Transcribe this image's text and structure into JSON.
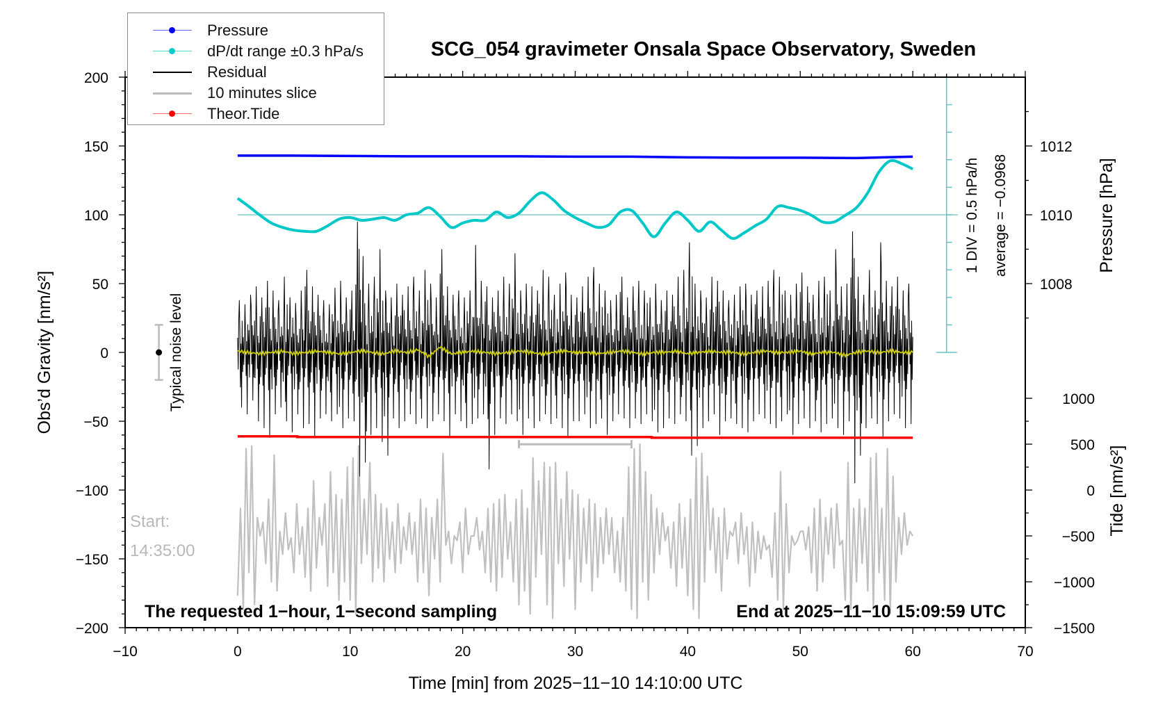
{
  "chart_data": {
    "type": "line",
    "title": "SCG_054 gravimeter Onsala Space Observatory, Sweden",
    "xlabel": "Time [min] from 2025−11−10 14:10:00 UTC",
    "ylabel": "Obs’d Gravity [nm/s²]",
    "y2label_pressure": "Pressure [hPa]",
    "y2label_tide": "Tide [nm/s²]",
    "xlim": [
      -10,
      70
    ],
    "ylim": [
      -200,
      200
    ],
    "x_ticks": [
      {
        "v": -10,
        "label": "−10"
      },
      {
        "v": 0,
        "label": "0"
      },
      {
        "v": 10,
        "label": "10"
      },
      {
        "v": 20,
        "label": "20"
      },
      {
        "v": 30,
        "label": "30"
      },
      {
        "v": 40,
        "label": "40"
      },
      {
        "v": 50,
        "label": "50"
      },
      {
        "v": 60,
        "label": "60"
      },
      {
        "v": 70,
        "label": "70"
      }
    ],
    "y_ticks": [
      {
        "v": 200,
        "label": "200"
      },
      {
        "v": 150,
        "label": "150"
      },
      {
        "v": 100,
        "label": "100"
      },
      {
        "v": 50,
        "label": "50"
      },
      {
        "v": 0,
        "label": "0"
      },
      {
        "v": -50,
        "label": "−50"
      },
      {
        "v": -100,
        "label": "−100"
      },
      {
        "v": -150,
        "label": "−150"
      },
      {
        "v": -200,
        "label": "−200"
      }
    ],
    "pressure_ticks": [
      {
        "v": 1012,
        "label": "1012"
      },
      {
        "v": 1010,
        "label": "1010"
      },
      {
        "v": 1008,
        "label": "1008"
      }
    ],
    "tide_ticks": [
      {
        "v": 1000,
        "label": "1000"
      },
      {
        "v": 500,
        "label": "500"
      },
      {
        "v": 0,
        "label": "0"
      },
      {
        "v": -500,
        "label": "−500"
      },
      {
        "v": -1000,
        "label": "−1000"
      },
      {
        "v": -1500,
        "label": "−1500"
      }
    ],
    "legend": {
      "placement": "top-left",
      "entries": [
        {
          "label": "Pressure",
          "color": "#0000ff",
          "marker": true
        },
        {
          "label": "dP/dt range ±0.3 hPa/s",
          "color": "#00cccc",
          "marker": true
        },
        {
          "label": "Residual",
          "color": "#000000",
          "marker": false
        },
        {
          "label": "10 minutes slice",
          "color": "#bbbbbb",
          "marker": false
        },
        {
          "label": "Theor.Tide",
          "color": "#ff0000",
          "marker": true
        }
      ]
    },
    "dpdt_annotation": {
      "div": "1 DIV = 0.5 hPa/h",
      "average": "average = −0.0968"
    },
    "noise_label": "Typical noise level",
    "noise_level": {
      "x": -7,
      "center": 0,
      "half_range": 20
    },
    "start_label": "Start:",
    "start_time": "14:35:00",
    "bottom_left_note": "The requested 1−hour, 1−second sampling",
    "bottom_right_note": "End at 2025−11−10 15:09:59 UTC",
    "slice_window": [
      25,
      35
    ],
    "series": {
      "pressure": {
        "name": "Pressure",
        "unit": "hPa",
        "x_step": 5,
        "values": [
          1011.72,
          1011.72,
          1011.71,
          1011.7,
          1011.7,
          1011.7,
          1011.69,
          1011.69,
          1011.67,
          1011.66,
          1011.66,
          1011.65,
          1011.69
        ]
      },
      "dpdt": {
        "name": "dP/dt",
        "unit": "hPa/h",
        "x_step": 1,
        "values": [
          0.3,
          0.15,
          -0.01,
          -0.15,
          -0.23,
          -0.28,
          -0.3,
          -0.3,
          -0.2,
          -0.08,
          -0.05,
          -0.1,
          -0.08,
          -0.05,
          -0.1,
          0.0,
          0.03,
          0.13,
          -0.03,
          -0.23,
          -0.15,
          -0.1,
          -0.1,
          0.05,
          -0.05,
          0.03,
          0.25,
          0.4,
          0.28,
          0.08,
          -0.05,
          -0.15,
          -0.23,
          -0.18,
          0.05,
          0.08,
          -0.15,
          -0.4,
          -0.15,
          0.05,
          -0.1,
          -0.3,
          -0.13,
          -0.28,
          -0.43,
          -0.33,
          -0.2,
          -0.08,
          0.15,
          0.13,
          0.08,
          -0.01,
          -0.13,
          -0.13,
          -0.01,
          0.13,
          0.4,
          0.78,
          0.98,
          0.93,
          0.83
        ]
      },
      "residual": {
        "name": "Residual",
        "unit": "nm/s²",
        "x_step": 0.5,
        "max": [
          38,
          35,
          42,
          48,
          40,
          52,
          45,
          38,
          55,
          40,
          36,
          45,
          60,
          48,
          42,
          38,
          35,
          47,
          52,
          40,
          45,
          95,
          70,
          50,
          55,
          75,
          45,
          40,
          50,
          42,
          48,
          55,
          45,
          60,
          50,
          40,
          75,
          48,
          42,
          45,
          40,
          45,
          78,
          52,
          48,
          40,
          45,
          55,
          50,
          72,
          45,
          50,
          48,
          45,
          60,
          55,
          42,
          50,
          58,
          42,
          40,
          48,
          55,
          62,
          50,
          45,
          38,
          42,
          55,
          40,
          48,
          52,
          45,
          40,
          50,
          38,
          45,
          42,
          55,
          60,
          80,
          50,
          45,
          40,
          55,
          52,
          45,
          38,
          42,
          48,
          50,
          42,
          45,
          48,
          52,
          60,
          55,
          45,
          42,
          50,
          58,
          48,
          42,
          52,
          55,
          45,
          75,
          48,
          50,
          88,
          55,
          42,
          60,
          45,
          80,
          52,
          48,
          55,
          45,
          50,
          55
        ],
        "min": [
          -40,
          -45,
          -35,
          -50,
          -55,
          -62,
          -45,
          -40,
          -50,
          -58,
          -45,
          -55,
          -52,
          -62,
          -48,
          -45,
          -50,
          -45,
          -55,
          -48,
          -50,
          -90,
          -80,
          -60,
          -55,
          -65,
          -75,
          -48,
          -55,
          -50,
          -45,
          -52,
          -48,
          -55,
          -50,
          -45,
          -50,
          -62,
          -45,
          -50,
          -55,
          -52,
          -48,
          -45,
          -85,
          -60,
          -48,
          -52,
          -45,
          -50,
          -60,
          -48,
          -55,
          -50,
          -45,
          -52,
          -48,
          -55,
          -62,
          -50,
          -50,
          -45,
          -55,
          -52,
          -48,
          -60,
          -50,
          -45,
          -48,
          -55,
          -48,
          -52,
          -45,
          -50,
          -58,
          -55,
          -48,
          -52,
          -45,
          -50,
          -75,
          -68,
          -55,
          -50,
          -45,
          -60,
          -50,
          -48,
          -52,
          -55,
          -58,
          -50,
          -45,
          -48,
          -52,
          -55,
          -50,
          -45,
          -60,
          -52,
          -48,
          -55,
          -50,
          -58,
          -52,
          -48,
          -55,
          -60,
          -50,
          -95,
          -75,
          -55,
          -48,
          -52,
          -62,
          -50,
          -45,
          -48,
          -55,
          -52,
          -40
        ]
      },
      "smoothed": {
        "name": "Smoothed residual",
        "unit": "nm/s²",
        "x_step": 1,
        "values": [
          1,
          0,
          -1,
          0,
          1,
          -1,
          0,
          1,
          0,
          -1,
          0,
          1,
          0,
          -1,
          1,
          0,
          2,
          -3,
          4,
          -1,
          0,
          1,
          0,
          -1,
          0,
          1,
          0,
          -1,
          0,
          1,
          0,
          0,
          -1,
          0,
          1,
          0,
          -1,
          0,
          0,
          1,
          -1,
          0,
          1,
          0,
          0,
          -1,
          0,
          1,
          0,
          0,
          1,
          -1,
          0,
          0,
          -2,
          0,
          1,
          0,
          1,
          0,
          0
        ]
      },
      "slice": {
        "name": "10 minutes slice",
        "unit": "nm/s² (tide axis)",
        "x_step": 0.25,
        "values": [
          -1150,
          -200,
          -1300,
          450,
          -900,
          480,
          -1250,
          -300,
          -500,
          -350,
          -800,
          -100,
          -1000,
          380,
          -1100,
          -450,
          -700,
          -250,
          -650,
          -520,
          -900,
          -150,
          -700,
          -400,
          -950,
          -200,
          -1100,
          100,
          -850,
          -300,
          -600,
          -150,
          -1050,
          200,
          -900,
          -50,
          -1200,
          -100,
          -1000,
          250,
          -1200,
          350,
          -1350,
          480,
          -800,
          -100,
          -700,
          300,
          -1000,
          -50,
          -850,
          -150,
          -1000,
          -200,
          -750,
          -350,
          -900,
          -150,
          -800,
          -400,
          -650,
          -250,
          -700,
          -350,
          -1000,
          -100,
          -900,
          -200,
          -1150,
          -300,
          -750,
          -100,
          -1000,
          400,
          -600,
          -450,
          -800,
          -500,
          -550,
          -350,
          -900,
          -200,
          -700,
          -500,
          -500,
          -300,
          -650,
          -450,
          -900,
          -200,
          -1000,
          -150,
          -1100,
          -100,
          -950,
          -50,
          -750,
          -350,
          -1000,
          -100,
          -1250,
          0,
          -1100,
          -200,
          -1350,
          350,
          -950,
          100,
          -700,
          300,
          -1250,
          250,
          -1400,
          300,
          -800,
          -100,
          -1050,
          200,
          -750,
          0,
          -1300,
          -50,
          -1000,
          -200,
          -800,
          -100,
          -1100,
          -150,
          -950,
          -300,
          -800,
          -200,
          -700,
          -300,
          -900,
          -450,
          -1000,
          -300,
          -1100,
          250,
          -1300,
          450,
          -1400,
          500,
          -1000,
          200,
          -1200,
          -50,
          -900,
          -200,
          -700,
          -250,
          -550,
          -400,
          -850,
          -350,
          -1050,
          -150,
          -850,
          -300,
          -1150,
          -100,
          -1300,
          350,
          -1400,
          400,
          -1000,
          150,
          -650,
          -200,
          -900,
          -300,
          -1100,
          -200,
          -750,
          -450,
          -500,
          -350,
          -800,
          -250,
          -700,
          -400,
          -1050,
          -350,
          -900,
          -450,
          -750,
          -500,
          -650,
          -600,
          -950,
          -250,
          -1200,
          200,
          -1300,
          -150,
          -900,
          -500,
          -600,
          -550,
          -450,
          -450,
          -650,
          -400,
          -900,
          -200,
          -1100,
          -100,
          -1000,
          -300,
          -700,
          -200,
          -850,
          -150,
          -600,
          -550,
          -1200,
          300,
          -1300,
          -200,
          -1000,
          -100,
          -800,
          -200,
          -1100,
          350,
          -1300,
          400,
          -900,
          -200,
          -1200,
          450,
          -1350,
          150,
          -1000,
          -300,
          -700,
          -250,
          -600,
          -450,
          -500
        ]
      },
      "theor_tide": {
        "name": "Theor.Tide",
        "unit": "nm/s² (tide axis)",
        "x": [
          0,
          5.3,
          36.8,
          60
        ],
        "values": [
          585,
          578,
          570,
          570
        ]
      }
    },
    "colors": {
      "pressure": "#0000ff",
      "dpdt": "#00c8c8",
      "dpdt_axis": "#66c2c2",
      "residual": "#000000",
      "smoothed": "#cccc00",
      "slice": "#c0c0c0",
      "tide": "#ff0000"
    }
  }
}
